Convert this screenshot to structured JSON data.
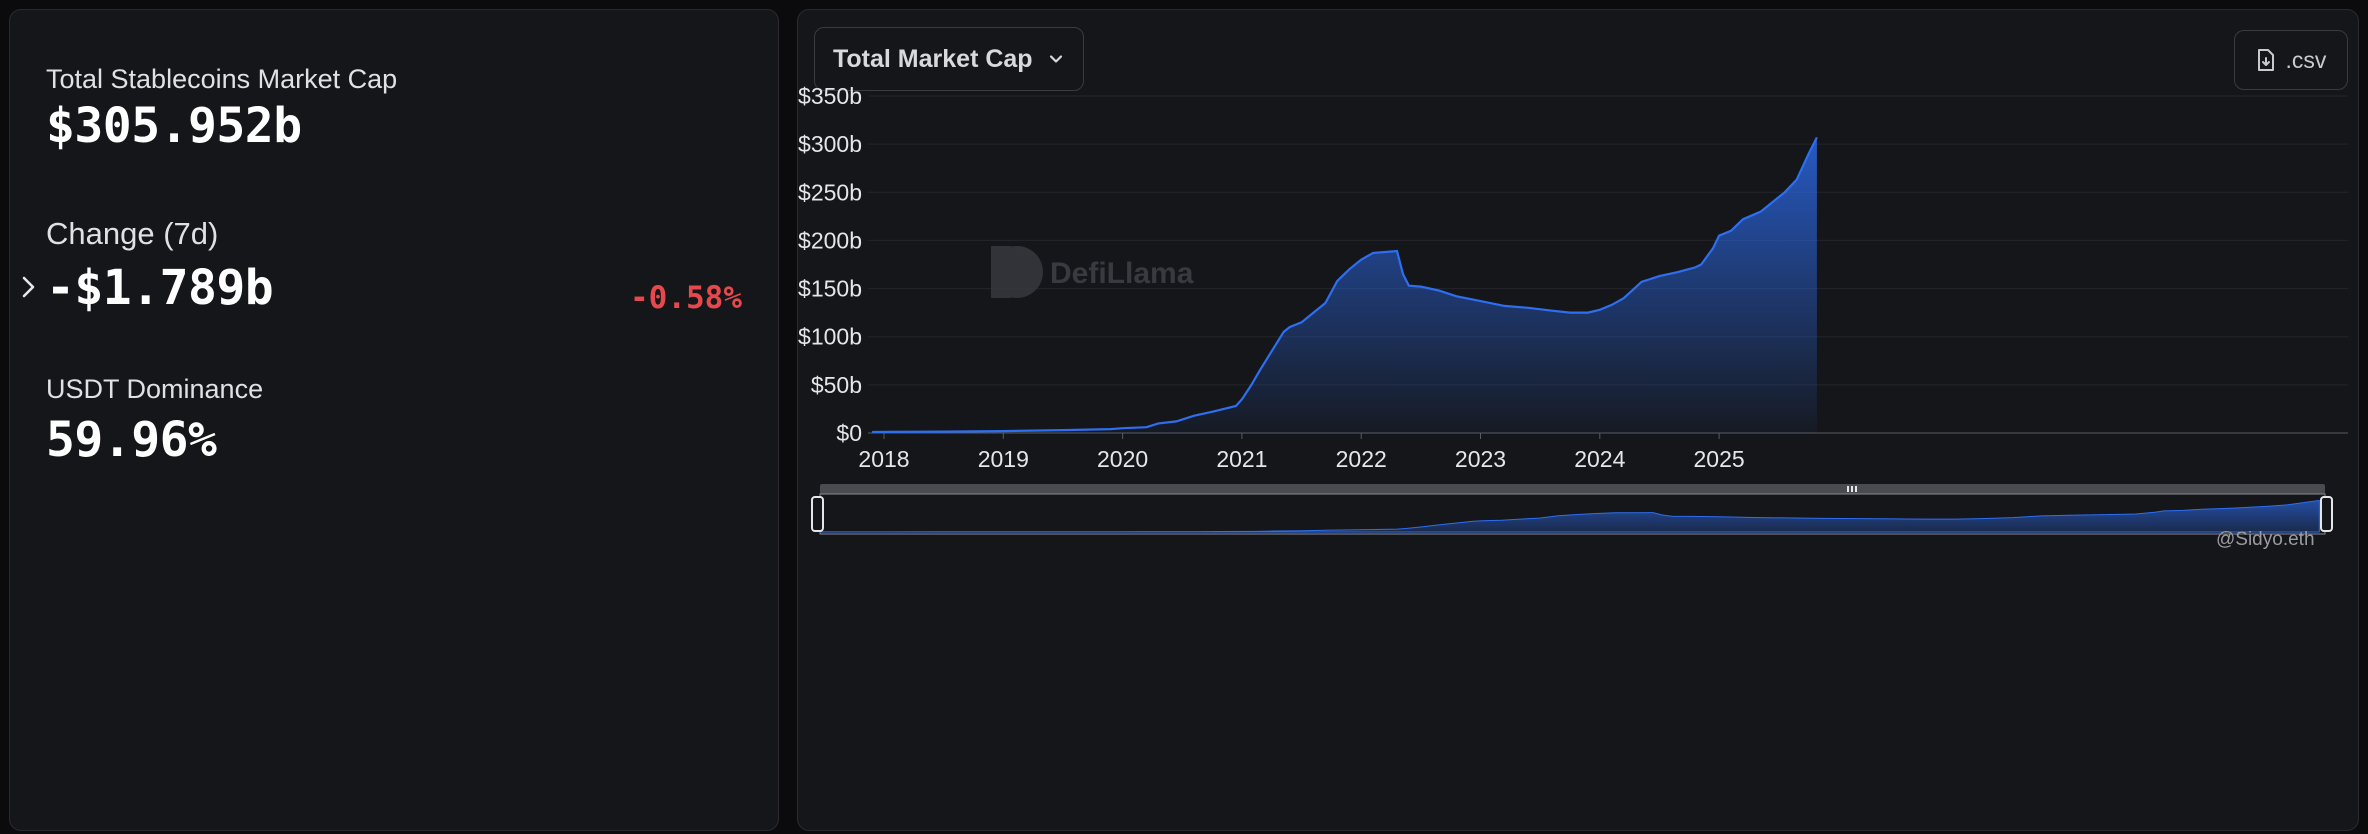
{
  "stats": {
    "total_label": "Total Stablecoins Market Cap",
    "total_value": "$305.952b",
    "change_label": "Change (7d)",
    "change_value": "-$1.789b",
    "change_pct": "-0.58%",
    "dominance_label": "USDT Dominance",
    "dominance_value": "59.96%"
  },
  "toolbar": {
    "dropdown_label": "Total Market Cap",
    "csv_label": ".csv"
  },
  "watermark": {
    "brand": "DefiLlama"
  },
  "credit": "@Sidyo.eth",
  "colors": {
    "accent": "#2a66e0",
    "negative": "#e5484d",
    "panel": "#151619"
  },
  "chart_data": {
    "type": "area",
    "xlabel": "",
    "ylabel": "",
    "y_ticks": [
      "$0",
      "$50b",
      "$100b",
      "$150b",
      "$200b",
      "$250b",
      "$300b",
      "$350b"
    ],
    "x_ticks": [
      "2018",
      "2019",
      "2020",
      "2021",
      "2022",
      "2023",
      "2024",
      "2025"
    ],
    "ylim": [
      0,
      350
    ],
    "xlim": [
      2017.9,
      2025.85
    ],
    "grid": true,
    "legend": "none",
    "series": [
      {
        "x": [
          2017.9,
          2018.5,
          2019.0,
          2019.5,
          2019.9,
          2020.0,
          2020.2,
          2020.3,
          2020.45,
          2020.6,
          2020.75,
          2020.95,
          2021.0,
          2021.08,
          2021.15,
          2021.25,
          2021.35,
          2021.4,
          2021.5,
          2021.6,
          2021.7,
          2021.8,
          2021.9,
          2022.0,
          2022.1,
          2022.2,
          2022.3,
          2022.35,
          2022.4,
          2022.5,
          2022.65,
          2022.8,
          2023.0,
          2023.2,
          2023.4,
          2023.6,
          2023.75,
          2023.9,
          2024.0,
          2024.1,
          2024.2,
          2024.35,
          2024.5,
          2024.65,
          2024.8,
          2024.85,
          2024.95,
          2025.0,
          2025.1,
          2025.2,
          2025.35,
          2025.45,
          2025.55,
          2025.65,
          2025.75,
          2025.82
        ],
        "values": [
          1,
          1.5,
          2,
          3,
          4,
          5,
          6,
          10,
          12,
          18,
          22,
          28,
          35,
          50,
          65,
          85,
          105,
          110,
          115,
          125,
          135,
          158,
          170,
          180,
          187,
          188,
          189,
          165,
          153,
          152,
          148,
          142,
          137,
          132,
          130,
          127,
          125,
          125,
          128,
          133,
          140,
          157,
          163,
          167,
          172,
          175,
          192,
          205,
          210,
          222,
          230,
          240,
          250,
          263,
          290,
          307
        ]
      }
    ]
  }
}
